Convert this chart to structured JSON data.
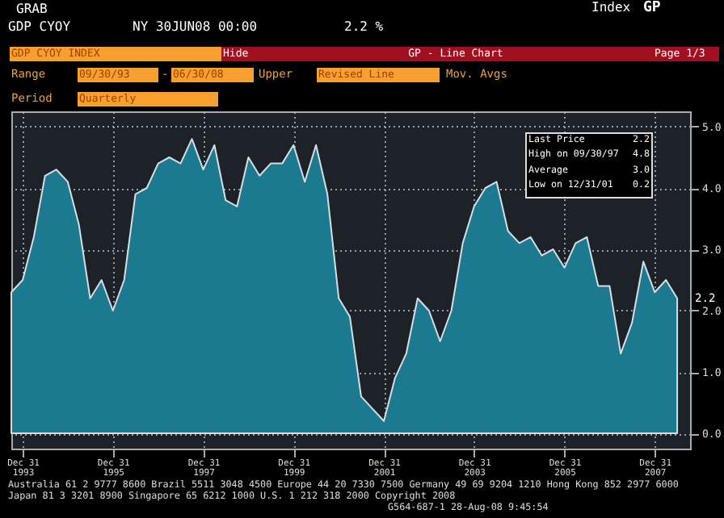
{
  "chart_data": {
    "type": "area",
    "x": [
      "1993-09-30",
      "1993-12-31",
      "1994-03-31",
      "1994-06-30",
      "1994-09-30",
      "1994-12-31",
      "1995-03-31",
      "1995-06-30",
      "1995-09-30",
      "1995-12-31",
      "1996-03-31",
      "1996-06-30",
      "1996-09-30",
      "1996-12-31",
      "1997-03-31",
      "1997-06-30",
      "1997-09-30",
      "1997-12-31",
      "1998-03-31",
      "1998-06-30",
      "1998-09-30",
      "1998-12-31",
      "1999-03-31",
      "1999-06-30",
      "1999-09-30",
      "1999-12-31",
      "2000-03-31",
      "2000-06-30",
      "2000-09-30",
      "2000-12-31",
      "2001-03-31",
      "2001-06-30",
      "2001-09-30",
      "2001-12-31",
      "2002-03-31",
      "2002-06-30",
      "2002-09-30",
      "2002-12-31",
      "2003-03-31",
      "2003-06-30",
      "2003-09-30",
      "2003-12-31",
      "2004-03-31",
      "2004-06-30",
      "2004-09-30",
      "2004-12-31",
      "2005-03-31",
      "2005-06-30",
      "2005-09-30",
      "2005-12-31",
      "2006-03-31",
      "2006-06-30",
      "2006-09-30",
      "2006-12-31",
      "2007-03-31",
      "2007-06-30",
      "2007-09-30",
      "2007-12-31",
      "2008-03-31",
      "2008-06-30"
    ],
    "series": [
      {
        "color": "#1b7a90",
        "values": [
          2.3,
          2.5,
          3.2,
          4.2,
          4.3,
          4.1,
          3.4,
          2.2,
          2.5,
          2.0,
          2.5,
          3.9,
          4.0,
          4.4,
          4.5,
          4.4,
          4.8,
          4.3,
          4.7,
          3.8,
          3.7,
          4.5,
          4.2,
          4.4,
          4.4,
          4.7,
          4.1,
          4.7,
          3.9,
          2.2,
          1.9,
          0.6,
          0.4,
          0.2,
          0.9,
          1.3,
          2.2,
          2.0,
          1.5,
          2.0,
          3.1,
          3.7,
          4.0,
          4.1,
          3.3,
          3.1,
          3.2,
          2.9,
          3.0,
          2.7,
          3.1,
          3.2,
          2.4,
          2.4,
          1.3,
          1.8,
          2.8,
          2.3,
          2.5,
          2.2
        ],
        "value_labels": [
          null,
          null,
          null,
          null,
          null,
          null,
          null,
          null,
          null,
          null,
          null,
          null,
          null,
          null,
          null,
          null,
          null,
          null,
          null,
          null,
          null,
          null,
          null,
          null,
          null,
          null,
          null,
          null,
          null,
          null,
          null,
          null,
          null,
          null,
          null,
          null,
          null,
          null,
          null,
          null,
          null,
          null,
          null,
          null,
          null,
          null,
          null,
          null,
          null,
          null,
          null,
          null,
          null,
          null,
          null,
          null,
          null,
          null,
          null,
          "2.2"
        ]
      }
    ],
    "xlim": [
      "1993-09-30",
      "2008-10-12"
    ],
    "xticks": [
      {
        "value": "1993-12-31",
        "label": "Dec 31\n1993"
      },
      {
        "value": "1995-12-31",
        "label": "Dec 31\n1995"
      },
      {
        "value": "1997-12-31",
        "label": "Dec 31\n1997"
      },
      {
        "value": "1999-12-31",
        "label": "Dec 31\n1999"
      },
      {
        "value": "2001-12-31",
        "label": "Dec 31\n2001"
      },
      {
        "value": "2003-12-31",
        "label": "Dec 31\n2003"
      },
      {
        "value": "2005-12-31",
        "label": "Dec 31\n2005"
      },
      {
        "value": "2007-12-31",
        "label": "Dec 31\n2007"
      }
    ],
    "ylim": [
      -0.25,
      5.25
    ],
    "yticks": [
      {
        "value": 0,
        "label": "0.0"
      },
      {
        "value": 1,
        "label": "1.0"
      },
      {
        "value": 2,
        "label": "2.0"
      },
      {
        "value": 3,
        "label": "3.0"
      },
      {
        "value": 4,
        "label": "4.0"
      },
      {
        "value": 5,
        "label": "5.0"
      }
    ],
    "grid": true,
    "annotations": [
      "GRAB",
      "Index",
      "GP",
      "GDP CYOY",
      "NY 30JUN08 00:00",
      "2.2 %",
      "GDP CYOY INDEX",
      "Hide",
      "GP - Line Chart",
      "Page 1/3",
      "Range",
      "09/30/93",
      "-",
      "06/30/08",
      "Upper",
      "Revised Line",
      "Mov. Avgs",
      "Period",
      "Quarterly",
      "Last Price",
      "2.2",
      "High on 09/30/97",
      "4.8",
      "Average",
      "3.0",
      "Low on 12/31/01",
      "0.2",
      "Australia 61 2 9777 8600 Brazil 5511 3048 4500 Europe 44 20 7330 7500 Germany 49 69 9204 1210 Hong Kong 852 2977 6000",
      "Japan 81 3 3201 8900 Singapore 65 6212 1000 U.S. 1 212 318 2000 Copyright 2008",
      "G564-687-1 28-Aug-08 9:45:54"
    ]
  }
}
